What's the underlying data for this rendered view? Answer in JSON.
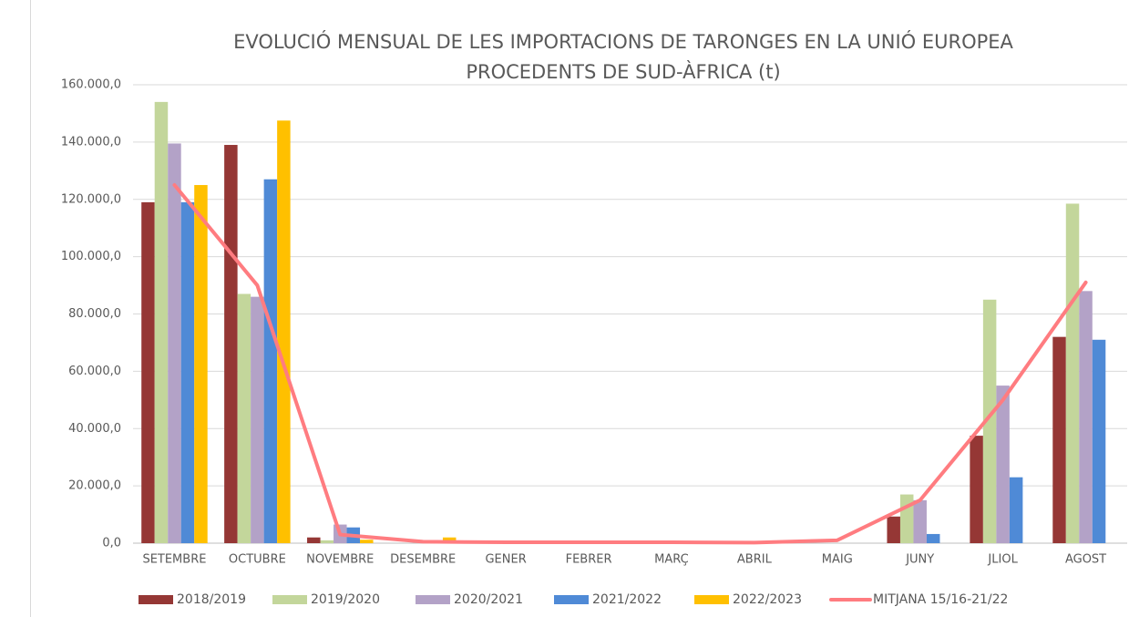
{
  "chart_data": {
    "type": "bar",
    "title": [
      "EVOLUCIÓ MENSUAL DE LES IMPORTACIONS DE TARONGES EN LA UNIÓ EUROPEA",
      "PROCEDENTS DE SUD-ÀFRICA (t)"
    ],
    "categories": [
      "SETEMBRE",
      "OCTUBRE",
      "NOVEMBRE",
      "DESEMBRE",
      "GENER",
      "FEBRER",
      "MARÇ",
      "ABRIL",
      "MAIG",
      "JUNY",
      "JLIOL",
      "AGOST"
    ],
    "series": [
      {
        "name": "2018/2019",
        "color": "#953735",
        "values": [
          119000,
          139000,
          2000,
          0,
          0,
          0,
          0,
          0,
          0,
          9300,
          37500,
          72000
        ]
      },
      {
        "name": "2019/2020",
        "color": "#c3d69b",
        "values": [
          154000,
          87000,
          1000,
          0,
          0,
          0,
          0,
          0,
          0,
          17000,
          85000,
          118500
        ]
      },
      {
        "name": "2020/2021",
        "color": "#b3a2c7",
        "values": [
          139500,
          86000,
          6500,
          0,
          0,
          0,
          0,
          0,
          0,
          15000,
          55000,
          88000
        ]
      },
      {
        "name": "2021/2022",
        "color": "#4f8ad6",
        "values": [
          119000,
          127000,
          5500,
          0,
          0,
          0,
          0,
          0,
          0,
          3200,
          23000,
          71000
        ]
      },
      {
        "name": "2022/2023",
        "color": "#ffc000",
        "values": [
          125000,
          147500,
          1200,
          2000,
          0,
          0,
          0,
          0,
          0,
          null,
          null,
          null
        ]
      },
      {
        "name": "MITJANA 15/16-21/22",
        "color": "#ff7c80",
        "type": "line",
        "values": [
          125000,
          90000,
          3000,
          500,
          300,
          300,
          300,
          200,
          1000,
          15000,
          50000,
          91000
        ]
      }
    ],
    "ylim": [
      0,
      160000
    ],
    "yticks": [
      {
        "value": 0,
        "label": "0,0"
      },
      {
        "value": 20000,
        "label": "20.000,0"
      },
      {
        "value": 40000,
        "label": "40.000,0"
      },
      {
        "value": 60000,
        "label": "60.000,0"
      },
      {
        "value": 80000,
        "label": "80.000,0"
      },
      {
        "value": 100000,
        "label": "100.000,0"
      },
      {
        "value": 120000,
        "label": "120.000,0"
      },
      {
        "value": 140000,
        "label": "140.000,0"
      },
      {
        "value": 160000,
        "label": "160.000,0"
      }
    ],
    "grid": true
  }
}
